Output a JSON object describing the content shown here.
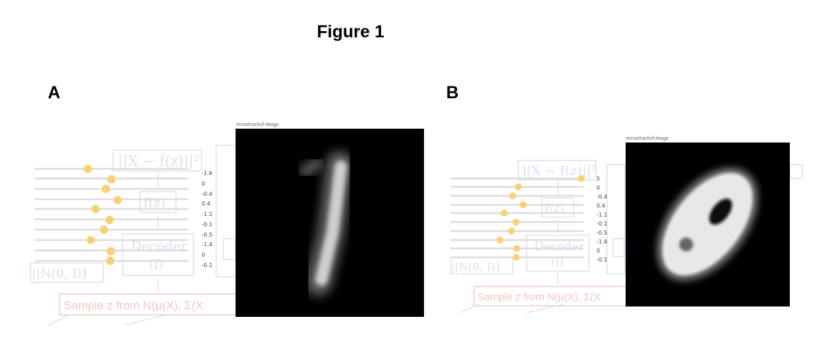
{
  "figure_title": "Figure 1",
  "panels": [
    {
      "letter": "A",
      "reconstructed_label": "recostructed image",
      "latent_values": [
        "-1.6",
        "0",
        "-0.4",
        "0.4",
        "-1.1",
        "-0.1",
        "-0.5",
        "-1.4",
        "0",
        "-0.1"
      ],
      "background": {
        "loss_text": "||X − f(z)||²",
        "fz_text": "f(z)",
        "decoder_text": "Decoder",
        "f_text": "(f)",
        "kl_text": "||N(0, I)]",
        "sample_text": "Sample z from N(μ(X), Σ(X"
      }
    },
    {
      "letter": "B",
      "reconstructed_label": "recostructed image",
      "latent_values": [
        "5",
        "0",
        "-0.4",
        "0.4",
        "-1.1",
        "-0.1",
        "-0.5",
        "-1.4",
        "0",
        "-0.1"
      ],
      "background": {
        "loss_text": "||X − f(z)||²",
        "fz_text": "f(z)",
        "decoder_text": "Decoder",
        "f_text": "(f)",
        "kl_text": "||N(0, I)]",
        "sample_text": "Sample z from N(μ(X), Σ(X"
      }
    }
  ],
  "colors": {
    "slider_dot": "#f9d174",
    "slider_track": "#dcdcdc",
    "ghost_diagram": "#d9dff0",
    "ghost_sample": "#f6c4c4"
  }
}
